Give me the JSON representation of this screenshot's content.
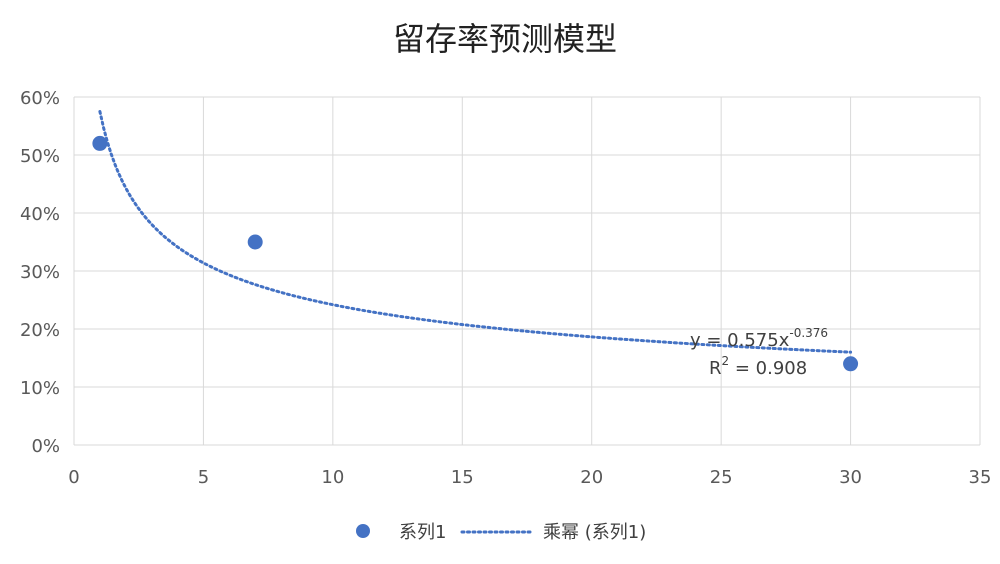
{
  "chart_data": {
    "type": "scatter",
    "title": "留存率预测模型",
    "xlim": [
      0,
      35
    ],
    "ylim": [
      0,
      0.6
    ],
    "x_ticks": [
      "0",
      "5",
      "10",
      "15",
      "20",
      "25",
      "30",
      "35"
    ],
    "y_ticks": [
      "0%",
      "10%",
      "20%",
      "30%",
      "40%",
      "50%",
      "60%"
    ],
    "grid": true,
    "series": [
      {
        "name": "系列1",
        "x": [
          1,
          7,
          30
        ],
        "y": [
          0.52,
          0.35,
          0.14
        ],
        "color": "#4472C4"
      }
    ],
    "trendline": {
      "name": "乘幂 (系列1)",
      "type": "power",
      "a": 0.575,
      "b": -0.376,
      "equation": {
        "prefix": "y = 0.575x",
        "exponent": "-0.376"
      },
      "r2": {
        "base": "R",
        "sup": "2",
        "suffix": " = 0.908"
      },
      "color": "#4472C4"
    },
    "legend": {
      "position": "bottom",
      "items": [
        "系列1",
        "乘幂 (系列1)"
      ]
    }
  }
}
